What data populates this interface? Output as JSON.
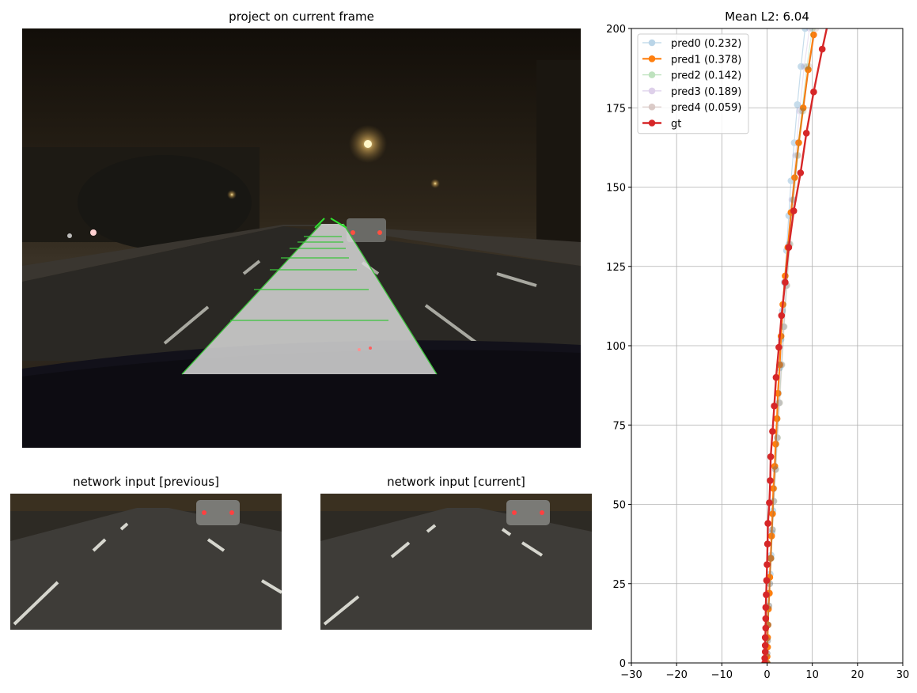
{
  "panels": {
    "main_title": "project on current frame",
    "prev_title": "network input [previous]",
    "curr_title": "network input [current]"
  },
  "chart_data": {
    "type": "line",
    "title": "Mean L2: 6.04",
    "xlabel": "",
    "ylabel": "",
    "xlim": [
      -30,
      30
    ],
    "ylim": [
      0,
      200
    ],
    "xticks": [
      -30,
      -20,
      -10,
      0,
      10,
      20,
      30
    ],
    "yticks": [
      0,
      25,
      50,
      75,
      100,
      125,
      150,
      175,
      200
    ],
    "grid": true,
    "legend_position": "top-left",
    "series": [
      {
        "name": "pred0 (0.232)",
        "color": "#1f77b4",
        "alpha": 0.25,
        "width": 1.2,
        "points": [
          [
            0,
            0
          ],
          [
            0,
            2
          ],
          [
            0.1,
            5
          ],
          [
            0.1,
            8
          ],
          [
            0.2,
            12
          ],
          [
            0.3,
            17
          ],
          [
            0.5,
            22
          ],
          [
            0.7,
            28
          ],
          [
            0.9,
            34
          ],
          [
            1.1,
            41
          ],
          [
            1.3,
            48
          ],
          [
            1.5,
            55
          ],
          [
            1.7,
            62
          ],
          [
            2,
            69
          ],
          [
            2.2,
            77
          ],
          [
            2.5,
            85
          ],
          [
            2.8,
            93
          ],
          [
            3.1,
            102
          ],
          [
            3.4,
            111
          ],
          [
            3.8,
            120
          ],
          [
            4.3,
            130
          ],
          [
            4.8,
            141
          ],
          [
            5.3,
            152
          ],
          [
            6,
            164
          ],
          [
            6.7,
            176
          ],
          [
            7.5,
            188
          ],
          [
            8.4,
            200
          ]
        ]
      },
      {
        "name": "pred1 (0.378)",
        "color": "#ff7f0e",
        "alpha": 1.0,
        "width": 2.2,
        "points": [
          [
            0,
            0
          ],
          [
            0,
            2
          ],
          [
            0.1,
            5
          ],
          [
            0.1,
            8
          ],
          [
            0.2,
            12
          ],
          [
            0.3,
            17
          ],
          [
            0.5,
            22
          ],
          [
            0.6,
            27
          ],
          [
            0.8,
            33
          ],
          [
            1,
            40
          ],
          [
            1.2,
            47
          ],
          [
            1.4,
            55
          ],
          [
            1.7,
            62
          ],
          [
            1.9,
            69
          ],
          [
            2.2,
            77
          ],
          [
            2.4,
            85
          ],
          [
            2.8,
            94
          ],
          [
            3.1,
            103
          ],
          [
            3.5,
            113
          ],
          [
            4,
            122
          ],
          [
            4.6,
            131
          ],
          [
            5.3,
            142
          ],
          [
            6.1,
            153
          ],
          [
            7,
            164
          ],
          [
            8,
            175
          ],
          [
            9.1,
            187
          ],
          [
            10.3,
            198
          ]
        ]
      },
      {
        "name": "pred2 (0.142)",
        "color": "#2ca02c",
        "alpha": 0.18,
        "width": 1.2,
        "points": [
          [
            0,
            0
          ],
          [
            0,
            3
          ],
          [
            0.1,
            7
          ],
          [
            0.2,
            12
          ],
          [
            0.4,
            18
          ],
          [
            0.6,
            25
          ],
          [
            0.9,
            33
          ],
          [
            1.2,
            42
          ],
          [
            1.5,
            51
          ],
          [
            1.9,
            61
          ],
          [
            2.3,
            71
          ],
          [
            2.7,
            82
          ],
          [
            3.2,
            94
          ],
          [
            3.7,
            106
          ],
          [
            4.3,
            119
          ],
          [
            5,
            132
          ],
          [
            5.8,
            146
          ],
          [
            6.7,
            160
          ],
          [
            7.7,
            174
          ],
          [
            8.8,
            188
          ],
          [
            10,
            200
          ]
        ]
      },
      {
        "name": "pred3 (0.189)",
        "color": "#9467bd",
        "alpha": 0.18,
        "width": 1.2,
        "points": [
          [
            0,
            0
          ],
          [
            0,
            3
          ],
          [
            0.1,
            7
          ],
          [
            0.2,
            12
          ],
          [
            0.4,
            18
          ],
          [
            0.6,
            25
          ],
          [
            0.8,
            33
          ],
          [
            1.1,
            42
          ],
          [
            1.4,
            51
          ],
          [
            1.8,
            61
          ],
          [
            2.2,
            71
          ],
          [
            2.6,
            82
          ],
          [
            3.1,
            94
          ],
          [
            3.6,
            106
          ],
          [
            4.2,
            119
          ],
          [
            4.8,
            132
          ],
          [
            5.5,
            146
          ],
          [
            6.3,
            160
          ],
          [
            7.2,
            174
          ],
          [
            8.2,
            188
          ],
          [
            9.4,
            200
          ]
        ]
      },
      {
        "name": "pred4 (0.059)",
        "color": "#8c564b",
        "alpha": 0.15,
        "width": 1.2,
        "points": [
          [
            0,
            0
          ],
          [
            0,
            3
          ],
          [
            0.1,
            7
          ],
          [
            0.2,
            12
          ],
          [
            0.4,
            18
          ],
          [
            0.6,
            25
          ],
          [
            0.9,
            33
          ],
          [
            1.2,
            42
          ],
          [
            1.5,
            51
          ],
          [
            1.9,
            61
          ],
          [
            2.3,
            71
          ],
          [
            2.8,
            82
          ],
          [
            3.3,
            94
          ],
          [
            3.8,
            106
          ],
          [
            4.4,
            119
          ],
          [
            5.1,
            132
          ],
          [
            5.9,
            146
          ],
          [
            6.9,
            160
          ],
          [
            8,
            174
          ],
          [
            9.3,
            188
          ],
          [
            10.8,
            200
          ]
        ]
      },
      {
        "name": "gt",
        "color": "#d62728",
        "alpha": 1.0,
        "width": 2.4,
        "points": [
          [
            -0.5,
            0
          ],
          [
            -0.5,
            1.5
          ],
          [
            -0.4,
            3.5
          ],
          [
            -0.4,
            5.5
          ],
          [
            -0.4,
            8
          ],
          [
            -0.3,
            11
          ],
          [
            -0.3,
            14
          ],
          [
            -0.3,
            17.5
          ],
          [
            -0.2,
            21.5
          ],
          [
            -0.1,
            26
          ],
          [
            0,
            31
          ],
          [
            0.1,
            37.5
          ],
          [
            0.2,
            44
          ],
          [
            0.5,
            50.5
          ],
          [
            0.7,
            57.5
          ],
          [
            0.8,
            65
          ],
          [
            1.2,
            73
          ],
          [
            1.6,
            81
          ],
          [
            2,
            90
          ],
          [
            2.6,
            99.5
          ],
          [
            3.2,
            109.5
          ],
          [
            4,
            120
          ],
          [
            4.8,
            131
          ],
          [
            5.9,
            142.5
          ],
          [
            7.4,
            154.5
          ],
          [
            8.7,
            167
          ],
          [
            10.3,
            180
          ],
          [
            12.2,
            193.5
          ],
          [
            13.5,
            202
          ]
        ]
      }
    ]
  }
}
